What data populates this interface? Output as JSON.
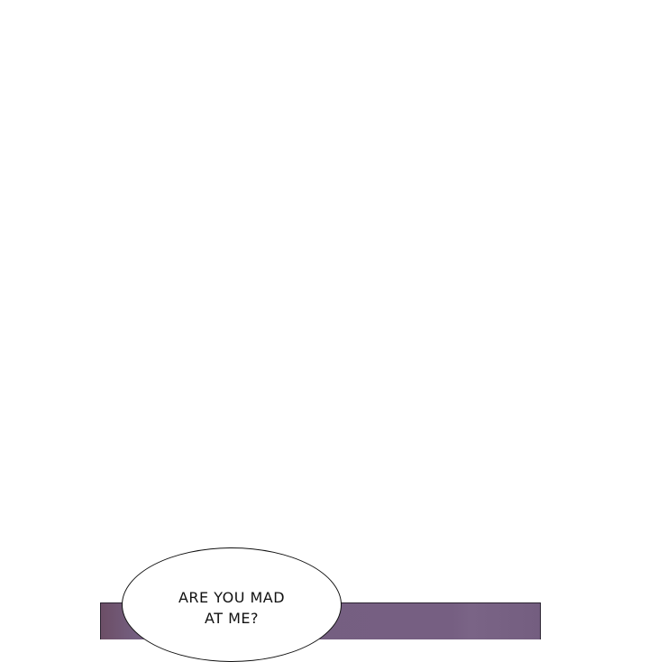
{
  "panel": {
    "color": "#745f80"
  },
  "speech_bubble": {
    "text": "ARE YOU MAD AT ME?"
  }
}
